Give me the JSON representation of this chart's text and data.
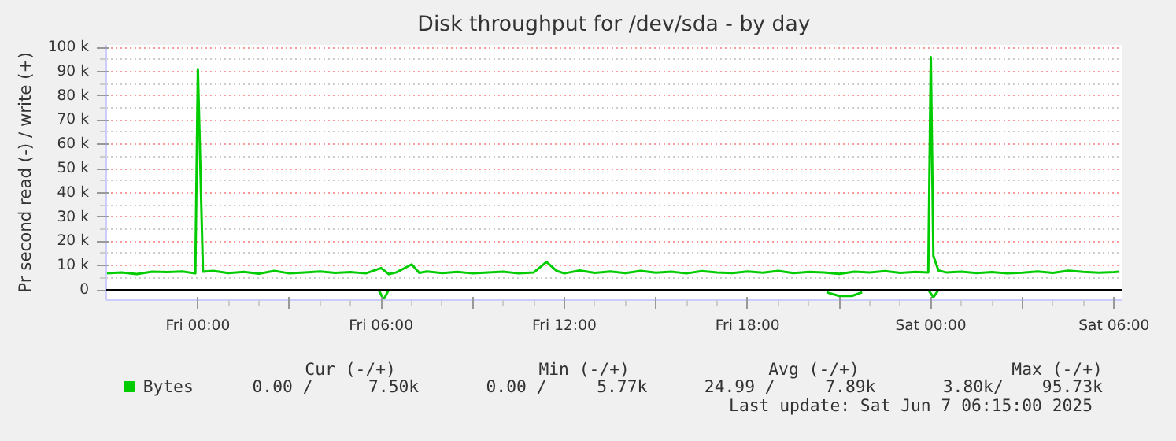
{
  "chart_data": {
    "type": "line",
    "title": "Disk throughput for /dev/sda - by day",
    "ylabel": "Pr second read (-) / write (+)",
    "xlim": [
      "2025-06-05T21:00",
      "2025-06-07T06:15"
    ],
    "ylim": [
      -4200,
      101000
    ],
    "xticks": [
      {
        "value": "2025-06-06T00:00",
        "label": "Fri 00:00"
      },
      {
        "value": "2025-06-06T03:00",
        "label": null
      },
      {
        "value": "2025-06-06T06:00",
        "label": "Fri 06:00"
      },
      {
        "value": "2025-06-06T09:00",
        "label": null
      },
      {
        "value": "2025-06-06T12:00",
        "label": "Fri 12:00"
      },
      {
        "value": "2025-06-06T15:00",
        "label": null
      },
      {
        "value": "2025-06-06T18:00",
        "label": "Fri 18:00"
      },
      {
        "value": "2025-06-06T21:00",
        "label": null
      },
      {
        "value": "2025-06-07T00:00",
        "label": "Sat 00:00"
      },
      {
        "value": "2025-06-07T03:00",
        "label": null
      },
      {
        "value": "2025-06-07T06:00",
        "label": "Sat 06:00"
      }
    ],
    "yticks": [
      0,
      {
        "value": 10000,
        "label": "10 k"
      },
      {
        "value": 20000,
        "label": "20 k"
      },
      {
        "value": 30000,
        "label": "30 k"
      },
      {
        "value": 40000,
        "label": "40 k"
      },
      {
        "value": 50000,
        "label": "50 k"
      },
      {
        "value": 60000,
        "label": "60 k"
      },
      {
        "value": 70000,
        "label": "70 k"
      },
      {
        "value": 80000,
        "label": "80 k"
      },
      {
        "value": 90000,
        "label": "90 k"
      },
      {
        "value": 100000,
        "label": "100 k"
      }
    ],
    "grid": true,
    "legend": "bottom",
    "marker": "none",
    "line_style": "solid",
    "ref_lines": [
      {
        "axis": "y",
        "value": 0,
        "label": null,
        "color": "#000000"
      }
    ],
    "series": [
      {
        "name": "Bytes",
        "color": "#00cc00",
        "x": [
          "2025-06-05T21:00",
          "2025-06-05T21:30",
          "2025-06-05T22:00",
          "2025-06-05T22:30",
          "2025-06-05T23:00",
          "2025-06-05T23:30",
          "2025-06-05T23:55",
          "2025-06-06T00:00",
          "2025-06-06T00:10",
          "2025-06-06T00:30",
          "2025-06-06T01:00",
          "2025-06-06T01:30",
          "2025-06-06T02:00",
          "2025-06-06T02:30",
          "2025-06-06T03:00",
          "2025-06-06T03:30",
          "2025-06-06T04:00",
          "2025-06-06T04:30",
          "2025-06-06T05:00",
          "2025-06-06T05:30",
          "2025-06-06T06:00",
          "2025-06-06T06:15",
          "2025-06-06T06:30",
          "2025-06-06T07:00",
          "2025-06-06T07:15",
          "2025-06-06T07:30",
          "2025-06-06T08:00",
          "2025-06-06T08:30",
          "2025-06-06T09:00",
          "2025-06-06T09:30",
          "2025-06-06T10:00",
          "2025-06-06T10:30",
          "2025-06-06T11:00",
          "2025-06-06T11:25",
          "2025-06-06T11:45",
          "2025-06-06T12:00",
          "2025-06-06T12:30",
          "2025-06-06T13:00",
          "2025-06-06T13:30",
          "2025-06-06T14:00",
          "2025-06-06T14:30",
          "2025-06-06T15:00",
          "2025-06-06T15:30",
          "2025-06-06T16:00",
          "2025-06-06T16:30",
          "2025-06-06T17:00",
          "2025-06-06T17:30",
          "2025-06-06T18:00",
          "2025-06-06T18:30",
          "2025-06-06T19:00",
          "2025-06-06T19:30",
          "2025-06-06T20:00",
          "2025-06-06T20:30",
          "2025-06-06T21:00",
          "2025-06-06T21:30",
          "2025-06-06T22:00",
          "2025-06-06T22:30",
          "2025-06-06T23:00",
          "2025-06-06T23:30",
          "2025-06-06T23:55",
          "2025-06-07T00:00",
          "2025-06-07T00:05",
          "2025-06-07T00:15",
          "2025-06-07T00:30",
          "2025-06-07T01:00",
          "2025-06-07T01:30",
          "2025-06-07T02:00",
          "2025-06-07T02:30",
          "2025-06-07T03:00",
          "2025-06-07T03:30",
          "2025-06-07T04:00",
          "2025-06-07T04:30",
          "2025-06-07T05:00",
          "2025-06-07T05:30",
          "2025-06-07T06:00",
          "2025-06-07T06:10"
        ],
        "values": [
          6800,
          7200,
          6500,
          7500,
          7300,
          7600,
          6800,
          91000,
          7500,
          7800,
          6900,
          7400,
          6700,
          7800,
          6800,
          7200,
          7600,
          7000,
          7300,
          6800,
          9000,
          6500,
          7200,
          10500,
          7000,
          7600,
          6900,
          7400,
          6800,
          7200,
          7500,
          6800,
          7200,
          11500,
          7800,
          6800,
          8000,
          7000,
          7600,
          6900,
          7800,
          7100,
          7500,
          6800,
          7700,
          7200,
          6900,
          7600,
          7100,
          7800,
          6900,
          7400,
          7200,
          6600,
          7500,
          7200,
          7700,
          7000,
          7400,
          7200,
          96000,
          14000,
          8000,
          7200,
          7500,
          6900,
          7300,
          6800,
          7100,
          7600,
          7000,
          7900,
          7400,
          7100,
          7300,
          7500
        ]
      },
      {
        "color": "#00cc00",
        "x": [
          "2025-06-06T05:55",
          "2025-06-06T06:05",
          "2025-06-06T06:15",
          "2025-06-06T06:20",
          "2025-06-06T20:35",
          "2025-06-06T21:00",
          "2025-06-06T21:25",
          "2025-06-06T21:45",
          "2025-06-06T23:50",
          "2025-06-06T23:55",
          "2025-06-07T00:05",
          "2025-06-07T00:15"
        ],
        "values": [
          0,
          -4000,
          0,
          null,
          -1000,
          -2500,
          -2500,
          -1000,
          null,
          0,
          -3000,
          0
        ]
      }
    ],
    "annotations": [
      "Cur (-/+)",
      "Min (-/+)",
      "Avg (-/+)",
      "Max (-/+)",
      "0.00 /",
      "7.50k",
      "0.00 /",
      "5.77k",
      "24.99 /",
      "7.89k",
      "3.80k/",
      "95.73k",
      "Last update: Sat Jun  7 06:15:00 2025"
    ]
  }
}
